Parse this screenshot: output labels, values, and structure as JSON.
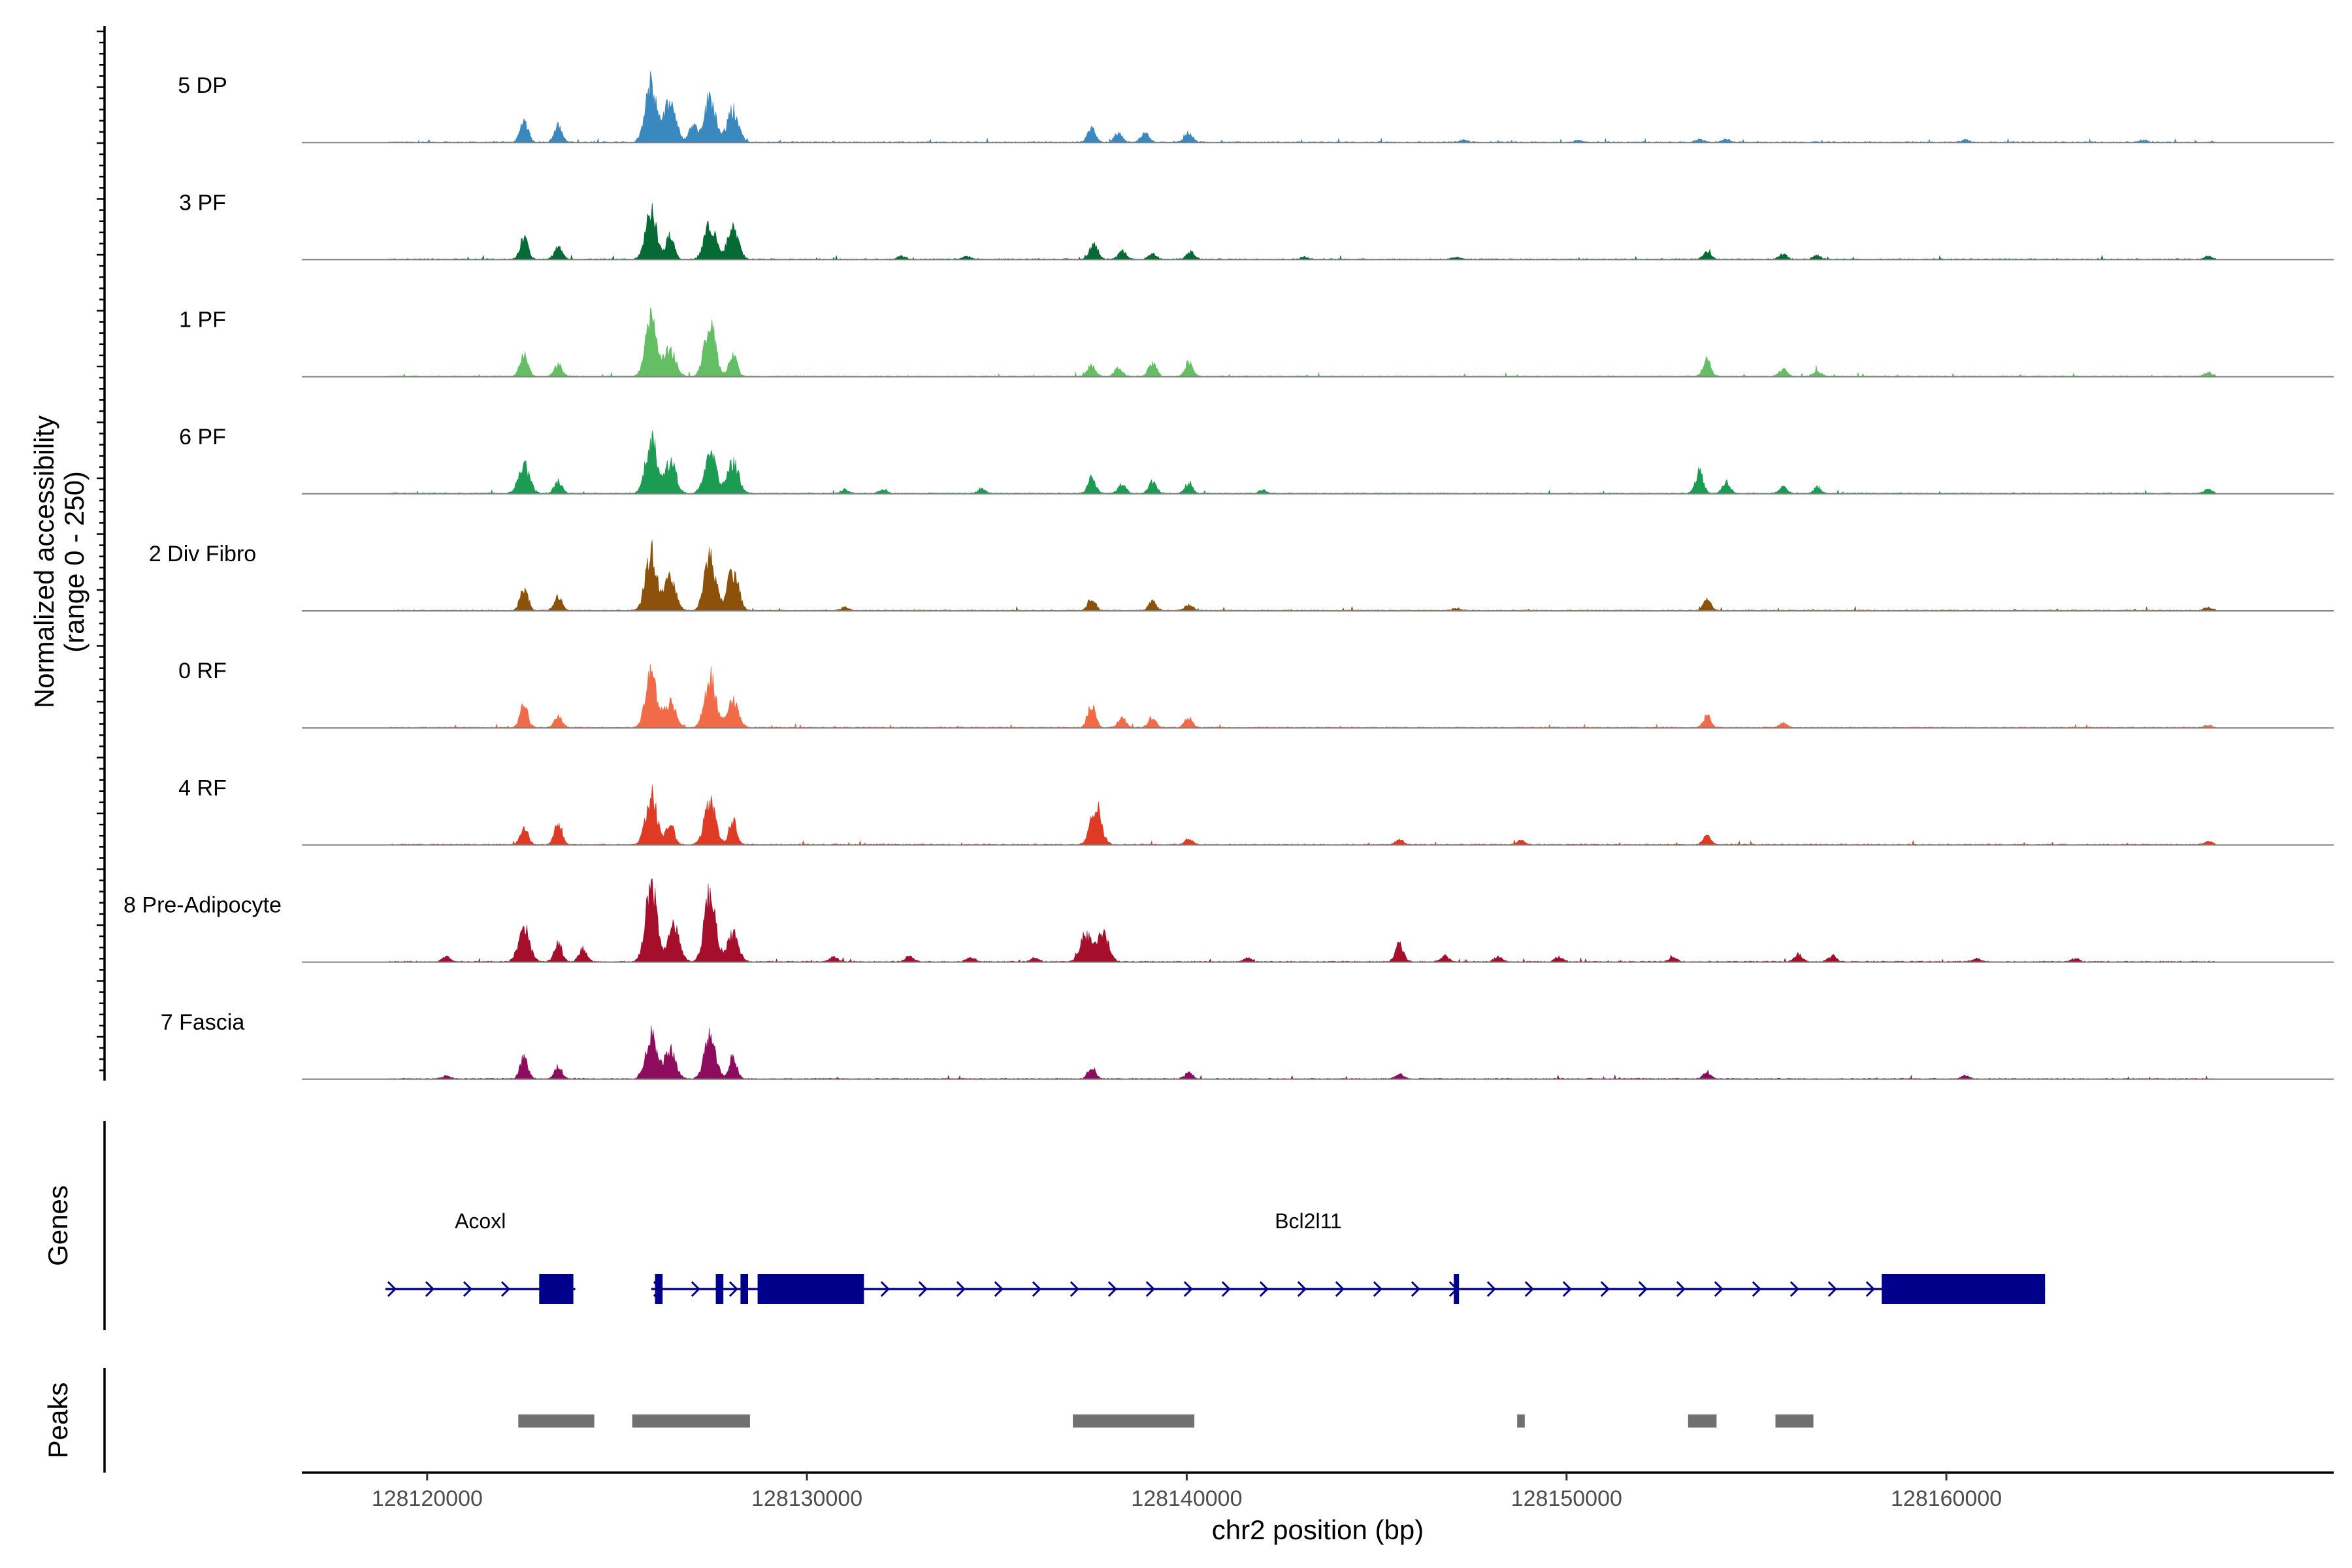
{
  "chart_data": {
    "type": "area",
    "title": "",
    "y_axis_label_line1": "Normalized accessibility",
    "y_axis_label_line2": "(range 0 - 250)",
    "ylim": [
      0,
      250
    ],
    "xlabel": "chr2 position (bp)",
    "xlim": [
      128116700,
      128170200
    ],
    "x_ticks": [
      128120000,
      128130000,
      128140000,
      128150000,
      128160000
    ],
    "x_tick_labels": [
      "128120000",
      "128130000",
      "128140000",
      "128150000",
      "128160000"
    ],
    "tracks": [
      {
        "name": "5 DP",
        "color": "#3A88C0",
        "peaks": [
          [
            128122550,
            55
          ],
          [
            128123450,
            42
          ],
          [
            128125900,
            150
          ],
          [
            128126400,
            110
          ],
          [
            128127450,
            115
          ],
          [
            128127000,
            48
          ],
          [
            128128050,
            80
          ],
          [
            128137500,
            35
          ],
          [
            128138200,
            22
          ],
          [
            128138900,
            26
          ],
          [
            128140050,
            25
          ],
          [
            128147300,
            5
          ],
          [
            128150300,
            4
          ],
          [
            128153500,
            7
          ],
          [
            128154200,
            7
          ],
          [
            128160500,
            6
          ],
          [
            128165200,
            5
          ]
        ]
      },
      {
        "name": "3 PF",
        "color": "#066A35",
        "peaks": [
          [
            128122550,
            55
          ],
          [
            128123450,
            30
          ],
          [
            128125900,
            115
          ],
          [
            128126400,
            60
          ],
          [
            128127450,
            90
          ],
          [
            128128050,
            75
          ],
          [
            128132500,
            8
          ],
          [
            128134200,
            7
          ],
          [
            128137550,
            45
          ],
          [
            128138300,
            20
          ],
          [
            128139100,
            15
          ],
          [
            128140100,
            18
          ],
          [
            128143100,
            6
          ],
          [
            128147100,
            5
          ],
          [
            128153700,
            18
          ],
          [
            128155700,
            12
          ],
          [
            128156600,
            10
          ],
          [
            128166900,
            8
          ]
        ]
      },
      {
        "name": "1 PF",
        "color": "#63BE64",
        "peaks": [
          [
            128122550,
            60
          ],
          [
            128123450,
            30
          ],
          [
            128125900,
            145
          ],
          [
            128126400,
            70
          ],
          [
            128127450,
            130
          ],
          [
            128128050,
            60
          ],
          [
            128137500,
            30
          ],
          [
            128138200,
            20
          ],
          [
            128139100,
            35
          ],
          [
            128140050,
            35
          ],
          [
            128153700,
            40
          ],
          [
            128155700,
            18
          ],
          [
            128156600,
            15
          ],
          [
            128166900,
            10
          ]
        ]
      },
      {
        "name": "6 PF",
        "color": "#1C9B52",
        "peaks": [
          [
            128122550,
            70
          ],
          [
            128123450,
            30
          ],
          [
            128125900,
            135
          ],
          [
            128126400,
            80
          ],
          [
            128127450,
            115
          ],
          [
            128128050,
            80
          ],
          [
            128131000,
            10
          ],
          [
            128132000,
            10
          ],
          [
            128134600,
            12
          ],
          [
            128137500,
            40
          ],
          [
            128138300,
            25
          ],
          [
            128139100,
            30
          ],
          [
            128140050,
            25
          ],
          [
            128142000,
            8
          ],
          [
            128153500,
            55
          ],
          [
            128154200,
            28
          ],
          [
            128155700,
            16
          ],
          [
            128156600,
            15
          ],
          [
            128166900,
            12
          ]
        ]
      },
      {
        "name": "2 Div Fibro",
        "color": "#8C510A",
        "peaks": [
          [
            128122550,
            55
          ],
          [
            128123450,
            35
          ],
          [
            128125900,
            150
          ],
          [
            128126400,
            80
          ],
          [
            128127450,
            135
          ],
          [
            128128050,
            100
          ],
          [
            128131000,
            8
          ],
          [
            128137500,
            30
          ],
          [
            128139100,
            22
          ],
          [
            128140050,
            15
          ],
          [
            128147100,
            6
          ],
          [
            128153700,
            28
          ],
          [
            128166900,
            8
          ]
        ]
      },
      {
        "name": "0 RF",
        "color": "#F26B48",
        "peaks": [
          [
            128122550,
            60
          ],
          [
            128123450,
            30
          ],
          [
            128125900,
            140
          ],
          [
            128126400,
            65
          ],
          [
            128127450,
            125
          ],
          [
            128128050,
            65
          ],
          [
            128137500,
            60
          ],
          [
            128138300,
            25
          ],
          [
            128139100,
            25
          ],
          [
            128140050,
            25
          ],
          [
            128153700,
            30
          ],
          [
            128155700,
            12
          ],
          [
            128166900,
            6
          ]
        ]
      },
      {
        "name": "4 RF",
        "color": "#DE3A26",
        "peaks": [
          [
            128122550,
            45
          ],
          [
            128123450,
            55
          ],
          [
            128125900,
            125
          ],
          [
            128126400,
            55
          ],
          [
            128127450,
            110
          ],
          [
            128128050,
            60
          ],
          [
            128137600,
            100
          ],
          [
            128140050,
            15
          ],
          [
            128145600,
            12
          ],
          [
            128148800,
            10
          ],
          [
            128153700,
            22
          ],
          [
            128166900,
            8
          ]
        ]
      },
      {
        "name": "8 Pre-Adipocyte",
        "color": "#A50F2C",
        "peaks": [
          [
            128120500,
            12
          ],
          [
            128122550,
            85
          ],
          [
            128123450,
            45
          ],
          [
            128124100,
            35
          ],
          [
            128125900,
            190
          ],
          [
            128126500,
            95
          ],
          [
            128127450,
            175
          ],
          [
            128128050,
            70
          ],
          [
            128130700,
            12
          ],
          [
            128132700,
            14
          ],
          [
            128134300,
            12
          ],
          [
            128136000,
            10
          ],
          [
            128137350,
            70
          ],
          [
            128137800,
            70
          ],
          [
            128141600,
            10
          ],
          [
            128145600,
            45
          ],
          [
            128146800,
            15
          ],
          [
            128148200,
            12
          ],
          [
            128149800,
            12
          ],
          [
            128152800,
            10
          ],
          [
            128156100,
            18
          ],
          [
            128157000,
            16
          ],
          [
            128160800,
            8
          ],
          [
            128163400,
            8
          ]
        ]
      },
      {
        "name": "7 Fascia",
        "color": "#8E0C5E",
        "peaks": [
          [
            128120500,
            8
          ],
          [
            128122550,
            55
          ],
          [
            128123450,
            30
          ],
          [
            128125900,
            115
          ],
          [
            128126400,
            70
          ],
          [
            128127450,
            110
          ],
          [
            128128050,
            55
          ],
          [
            128137500,
            30
          ],
          [
            128140050,
            15
          ],
          [
            128145600,
            12
          ],
          [
            128153700,
            18
          ],
          [
            128160500,
            8
          ]
        ]
      }
    ],
    "genes_panel_label": "Genes",
    "genes": [
      {
        "name": "Acoxl",
        "start": 128118900,
        "end": 128123900,
        "strand": "+",
        "exons": [
          [
            128122950,
            128123850
          ]
        ]
      },
      {
        "name": "Bcl2l11",
        "start": 128125900,
        "end": 128162600,
        "strand": "+",
        "exons": [
          [
            128126000,
            128126200
          ],
          [
            128127600,
            128127800
          ],
          [
            128128250,
            128128450
          ],
          [
            128128700,
            128131500
          ],
          [
            128147050,
            128147150
          ],
          [
            128158300,
            128162600
          ]
        ]
      }
    ],
    "peaks_panel_label": "Peaks",
    "peak_regions": [
      [
        128122400,
        128124400
      ],
      [
        128125400,
        128128500
      ],
      [
        128137000,
        128140200
      ],
      [
        128148700,
        128148900
      ],
      [
        128153200,
        128153950
      ],
      [
        128155500,
        128156500
      ]
    ]
  }
}
